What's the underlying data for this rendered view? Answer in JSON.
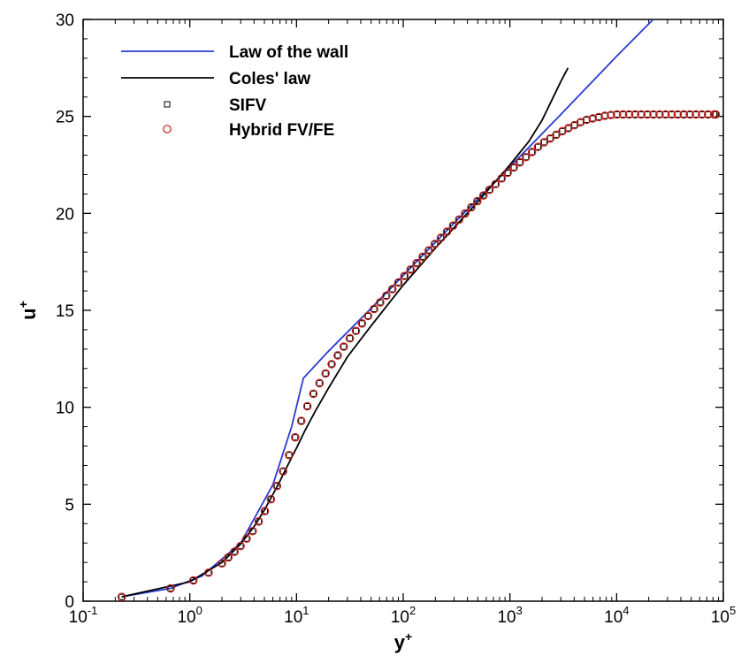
{
  "chart_data": {
    "type": "line",
    "xscale": "log",
    "xlim": [
      0.1,
      100000
    ],
    "ylim": [
      0,
      30
    ],
    "grid": false,
    "legend_position": "top-left",
    "xlabel": {
      "base": "y",
      "sup": "+"
    },
    "ylabel": {
      "base": "u",
      "sup": "+"
    },
    "xticks": [
      {
        "value": 0.1,
        "base": "10",
        "exp": "-1"
      },
      {
        "value": 1,
        "base": "10",
        "exp": "0"
      },
      {
        "value": 10,
        "base": "10",
        "exp": "1"
      },
      {
        "value": 100,
        "base": "10",
        "exp": "2"
      },
      {
        "value": 1000,
        "base": "10",
        "exp": "3"
      },
      {
        "value": 10000,
        "base": "10",
        "exp": "4"
      },
      {
        "value": 100000,
        "base": "10",
        "exp": "5"
      }
    ],
    "yticks": [
      {
        "value": 0,
        "label": "0"
      },
      {
        "value": 5,
        "label": "5"
      },
      {
        "value": 10,
        "label": "10"
      },
      {
        "value": 15,
        "label": "15"
      },
      {
        "value": 20,
        "label": "20"
      },
      {
        "value": 25,
        "label": "25"
      },
      {
        "value": 30,
        "label": "30"
      }
    ],
    "series": [
      {
        "name": "Law of the wall",
        "kind": "line",
        "color": "#2b3bd0",
        "points": [
          [
            0.23,
            0.23
          ],
          [
            0.66,
            0.66
          ],
          [
            1.3,
            1.3
          ],
          [
            3,
            3
          ],
          [
            6,
            6
          ],
          [
            9,
            9
          ],
          [
            11.6,
            11.5
          ],
          [
            20,
            12.9
          ],
          [
            50,
            15.1
          ],
          [
            100,
            16.8
          ],
          [
            300,
            19.5
          ],
          [
            1000,
            22.4
          ],
          [
            3000,
            25.1
          ],
          [
            10000,
            28.1
          ],
          [
            22000,
            30.0
          ]
        ]
      },
      {
        "name": "Coles' law",
        "kind": "line",
        "color": "#000000",
        "points": [
          [
            0.23,
            0.23
          ],
          [
            1,
            1
          ],
          [
            2,
            2
          ],
          [
            3,
            2.95
          ],
          [
            4,
            3.85
          ],
          [
            5,
            4.7
          ],
          [
            6,
            5.5
          ],
          [
            7,
            6.2
          ],
          [
            8,
            6.85
          ],
          [
            10,
            7.9
          ],
          [
            12,
            8.8
          ],
          [
            15,
            9.8
          ],
          [
            20,
            11.0
          ],
          [
            30,
            12.6
          ],
          [
            50,
            14.2
          ],
          [
            100,
            16.3
          ],
          [
            200,
            18.2
          ],
          [
            500,
            20.6
          ],
          [
            1000,
            22.5
          ],
          [
            1500,
            23.7
          ],
          [
            2000,
            24.8
          ],
          [
            2500,
            25.9
          ],
          [
            3000,
            26.8
          ],
          [
            3500,
            27.5
          ]
        ]
      },
      {
        "name": "SIFV",
        "kind": "marker",
        "marker": "square",
        "color": "#000000",
        "profile": [
          [
            0.23,
            0.22
          ],
          [
            0.66,
            0.66
          ],
          [
            1.08,
            1.07
          ],
          [
            1.5,
            1.47
          ],
          [
            2,
            1.95
          ],
          [
            3,
            2.85
          ],
          [
            4,
            3.7
          ],
          [
            5,
            4.6
          ],
          [
            6,
            5.45
          ],
          [
            7,
            6.3
          ],
          [
            8,
            7.1
          ],
          [
            9,
            7.9
          ],
          [
            10,
            8.65
          ],
          [
            12,
            9.8
          ],
          [
            15,
            10.9
          ],
          [
            20,
            12.0
          ],
          [
            30,
            13.4
          ],
          [
            50,
            14.9
          ],
          [
            100,
            16.7
          ],
          [
            200,
            18.45
          ],
          [
            500,
            20.65
          ],
          [
            1000,
            22.2
          ],
          [
            2000,
            23.6
          ],
          [
            3000,
            24.2
          ],
          [
            5000,
            24.8
          ],
          [
            8000,
            25.05
          ],
          [
            10000,
            25.1
          ],
          [
            90000,
            25.1
          ]
        ]
      },
      {
        "name": "Hybrid FV/FE",
        "kind": "marker",
        "marker": "circle",
        "color": "#c0201c",
        "profile": [
          [
            0.23,
            0.22
          ],
          [
            0.66,
            0.66
          ],
          [
            1.08,
            1.07
          ],
          [
            1.5,
            1.47
          ],
          [
            2,
            1.95
          ],
          [
            3,
            2.85
          ],
          [
            4,
            3.7
          ],
          [
            5,
            4.6
          ],
          [
            6,
            5.45
          ],
          [
            7,
            6.3
          ],
          [
            8,
            7.1
          ],
          [
            9,
            7.9
          ],
          [
            10,
            8.65
          ],
          [
            12,
            9.8
          ],
          [
            15,
            10.9
          ],
          [
            20,
            12.0
          ],
          [
            30,
            13.4
          ],
          [
            50,
            14.9
          ],
          [
            100,
            16.7
          ],
          [
            200,
            18.45
          ],
          [
            500,
            20.65
          ],
          [
            1000,
            22.2
          ],
          [
            2000,
            23.6
          ],
          [
            3000,
            24.2
          ],
          [
            5000,
            24.8
          ],
          [
            8000,
            25.05
          ],
          [
            10000,
            25.1
          ],
          [
            90000,
            25.1
          ]
        ]
      }
    ]
  }
}
